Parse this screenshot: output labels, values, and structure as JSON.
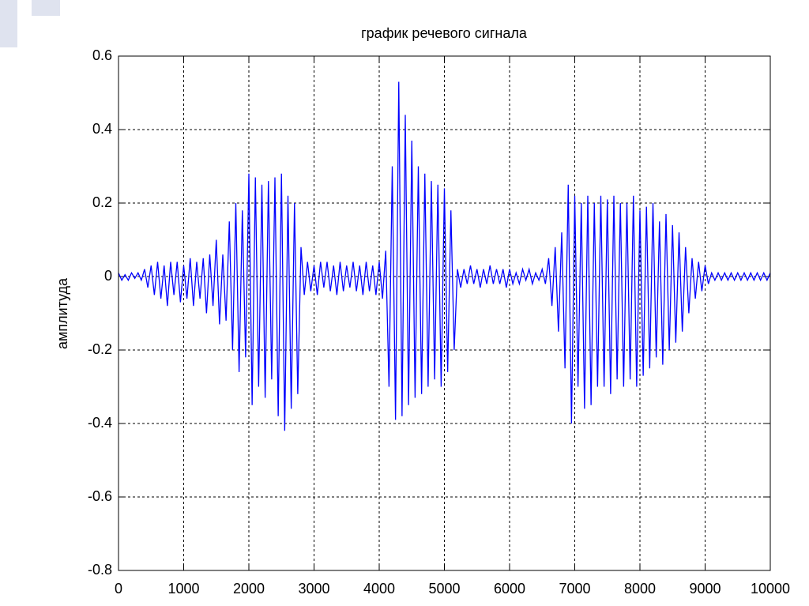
{
  "chart_data": {
    "type": "line",
    "title": "график речевого сигнала",
    "y_label": "амплитуда",
    "color": "#0000ff",
    "grid": true,
    "xlim": [
      0,
      10000
    ],
    "xticks": [
      0,
      1000,
      2000,
      3000,
      4000,
      5000,
      6000,
      7000,
      8000,
      9000,
      10000
    ],
    "ylim": [
      -0.8,
      0.6
    ],
    "yticks": [
      -0.8,
      -0.6,
      -0.4,
      -0.2,
      0,
      0.2,
      0.4,
      0.6
    ],
    "x": [
      0,
      50,
      100,
      150,
      200,
      250,
      300,
      350,
      400,
      450,
      500,
      550,
      600,
      650,
      700,
      750,
      800,
      850,
      900,
      950,
      1000,
      1050,
      1100,
      1150,
      1200,
      1250,
      1300,
      1350,
      1400,
      1450,
      1500,
      1550,
      1600,
      1650,
      1700,
      1750,
      1800,
      1850,
      1900,
      1950,
      2000,
      2050,
      2100,
      2150,
      2200,
      2250,
      2300,
      2350,
      2400,
      2450,
      2500,
      2550,
      2600,
      2650,
      2700,
      2750,
      2800,
      2850,
      2900,
      2950,
      3000,
      3050,
      3100,
      3150,
      3200,
      3250,
      3300,
      3350,
      3400,
      3450,
      3500,
      3550,
      3600,
      3650,
      3700,
      3750,
      3800,
      3850,
      3900,
      3950,
      4000,
      4050,
      4100,
      4150,
      4200,
      4250,
      4300,
      4350,
      4400,
      4450,
      4500,
      4550,
      4600,
      4650,
      4700,
      4750,
      4800,
      4850,
      4900,
      4950,
      5000,
      5050,
      5100,
      5150,
      5200,
      5250,
      5300,
      5350,
      5400,
      5450,
      5500,
      5550,
      5600,
      5650,
      5700,
      5750,
      5800,
      5850,
      5900,
      5950,
      6000,
      6050,
      6100,
      6150,
      6200,
      6250,
      6300,
      6350,
      6400,
      6450,
      6500,
      6550,
      6600,
      6650,
      6700,
      6750,
      6800,
      6850,
      6900,
      6950,
      7000,
      7050,
      7100,
      7150,
      7200,
      7250,
      7300,
      7350,
      7400,
      7450,
      7500,
      7550,
      7600,
      7650,
      7700,
      7750,
      7800,
      7850,
      7900,
      7950,
      8000,
      8050,
      8100,
      8150,
      8200,
      8250,
      8300,
      8350,
      8400,
      8450,
      8500,
      8550,
      8600,
      8650,
      8700,
      8750,
      8800,
      8850,
      8900,
      8950,
      9000,
      9050,
      9100,
      9150,
      9200,
      9250,
      9300,
      9350,
      9400,
      9450,
      9500,
      9550,
      9600,
      9650,
      9700,
      9750,
      9800,
      9850,
      9900,
      9950,
      10000
    ],
    "values": [
      0.01,
      -0.01,
      0.005,
      -0.01,
      0.01,
      -0.005,
      0.01,
      -0.01,
      0.02,
      -0.03,
      0.03,
      -0.05,
      0.04,
      -0.06,
      0.03,
      -0.08,
      0.04,
      -0.05,
      0.04,
      -0.07,
      0.03,
      -0.06,
      0.05,
      -0.08,
      0.04,
      -0.06,
      0.05,
      -0.1,
      0.06,
      -0.08,
      0.1,
      -0.13,
      0.06,
      -0.12,
      0.15,
      -0.2,
      0.2,
      -0.26,
      0.18,
      -0.22,
      0.28,
      -0.35,
      0.27,
      -0.3,
      0.25,
      -0.33,
      0.26,
      -0.28,
      0.27,
      -0.38,
      0.28,
      -0.42,
      0.22,
      -0.36,
      0.2,
      -0.32,
      0.08,
      -0.05,
      0.04,
      -0.04,
      0.03,
      -0.05,
      0.04,
      -0.03,
      0.04,
      -0.04,
      0.03,
      -0.05,
      0.04,
      -0.04,
      0.03,
      -0.03,
      0.04,
      -0.04,
      0.03,
      -0.05,
      0.04,
      -0.04,
      0.03,
      -0.05,
      0.04,
      -0.06,
      0.07,
      -0.3,
      0.3,
      -0.39,
      0.53,
      -0.38,
      0.44,
      -0.35,
      0.37,
      -0.33,
      0.3,
      -0.32,
      0.28,
      -0.3,
      0.26,
      -0.28,
      0.25,
      -0.3,
      0.24,
      -0.26,
      0.18,
      -0.2,
      0.02,
      -0.03,
      0.02,
      -0.02,
      0.03,
      -0.02,
      0.02,
      -0.03,
      0.02,
      -0.02,
      0.03,
      -0.02,
      0.02,
      -0.02,
      0.02,
      -0.03,
      0.02,
      -0.02,
      0.01,
      -0.02,
      0.02,
      -0.01,
      0.02,
      -0.02,
      0.01,
      -0.01,
      0.02,
      -0.02,
      0.05,
      -0.08,
      0.08,
      -0.15,
      0.12,
      -0.25,
      0.25,
      -0.4,
      0.22,
      -0.3,
      0.2,
      -0.36,
      0.22,
      -0.35,
      0.2,
      -0.3,
      0.22,
      -0.3,
      0.21,
      -0.32,
      0.22,
      -0.28,
      0.2,
      -0.3,
      0.2,
      -0.28,
      0.22,
      -0.3,
      0.18,
      -0.27,
      0.19,
      -0.25,
      0.2,
      -0.22,
      0.15,
      -0.24,
      0.17,
      -0.2,
      0.14,
      -0.18,
      0.12,
      -0.15,
      0.08,
      -0.1,
      0.05,
      -0.06,
      0.04,
      -0.04,
      0.03,
      -0.02,
      0.01,
      -0.01,
      0.01,
      -0.01,
      0.01,
      -0.01,
      0.01,
      -0.01,
      0.01,
      -0.01,
      0.01,
      -0.01,
      0.01,
      -0.01,
      0.01,
      -0.01,
      0.01,
      -0.01,
      0.01
    ]
  }
}
